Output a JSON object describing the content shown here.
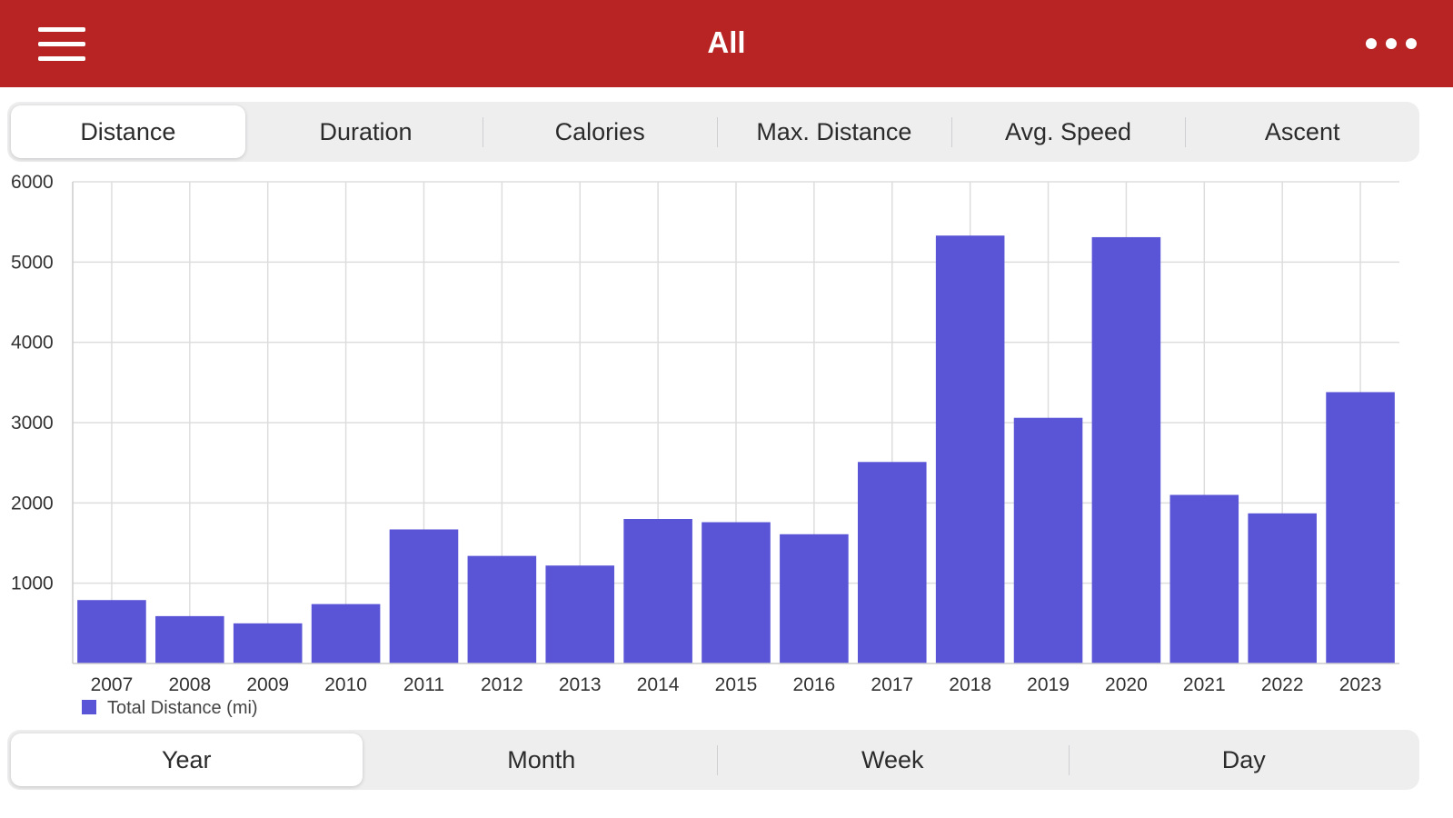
{
  "navbar": {
    "title": "All",
    "menu_icon": "hamburger-icon",
    "more_icon": "more-horizontal-icon",
    "background": "#b82424"
  },
  "metric_tabs": [
    {
      "label": "Distance",
      "active": true
    },
    {
      "label": "Duration",
      "active": false
    },
    {
      "label": "Calories",
      "active": false
    },
    {
      "label": "Max. Distance",
      "active": false
    },
    {
      "label": "Avg. Speed",
      "active": false
    },
    {
      "label": "Ascent",
      "active": false
    }
  ],
  "period_tabs": [
    {
      "label": "Year",
      "active": true
    },
    {
      "label": "Month",
      "active": false
    },
    {
      "label": "Week",
      "active": false
    },
    {
      "label": "Day",
      "active": false
    }
  ],
  "chart_data": {
    "type": "bar",
    "categories": [
      "2007",
      "2008",
      "2009",
      "2010",
      "2011",
      "2012",
      "2013",
      "2014",
      "2015",
      "2016",
      "2017",
      "2018",
      "2019",
      "2020",
      "2021",
      "2022",
      "2023"
    ],
    "series": [
      {
        "name": "Total Distance (mi)",
        "color": "#5a55d6",
        "values": [
          790,
          590,
          500,
          740,
          1670,
          1340,
          1220,
          1800,
          1760,
          1610,
          2510,
          5330,
          3060,
          5310,
          2100,
          1870,
          3380
        ]
      }
    ],
    "yticks": [
      1000,
      2000,
      3000,
      4000,
      5000,
      6000
    ],
    "ylim": [
      0,
      6000
    ],
    "grid": true,
    "legend": "bottom-left"
  }
}
